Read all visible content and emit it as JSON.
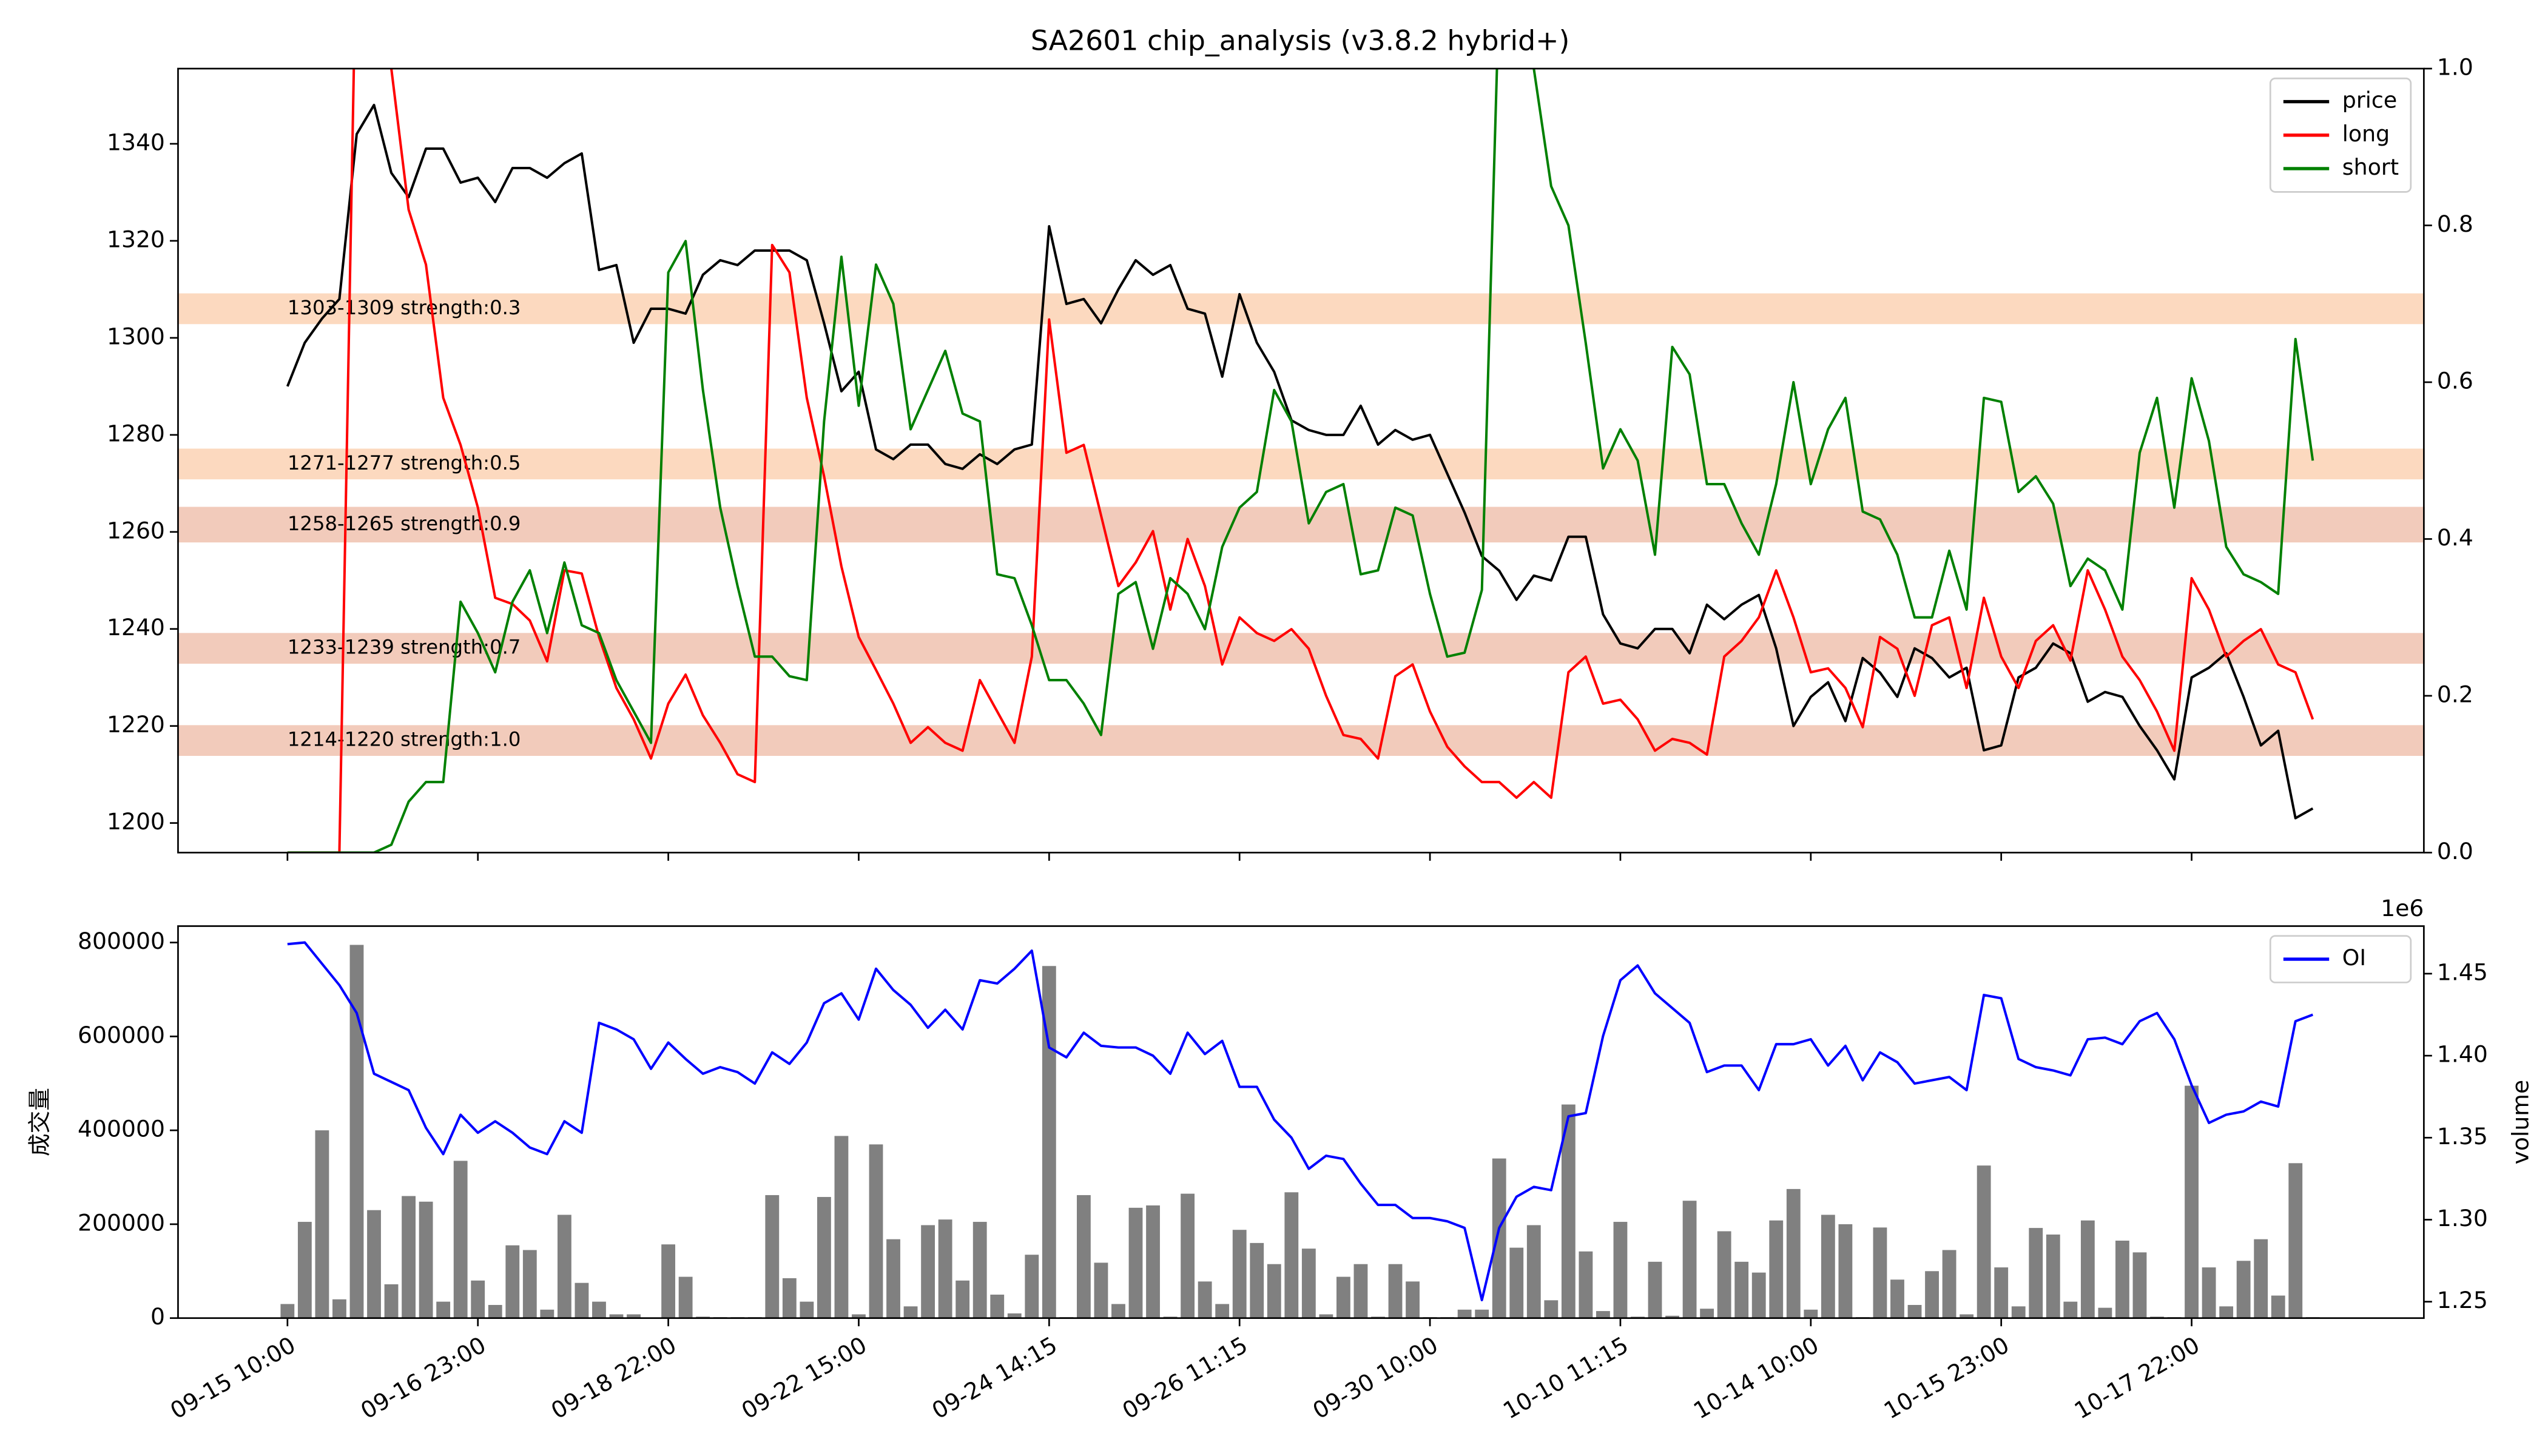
{
  "chart_data": [
    {
      "type": "line",
      "title": "SA2601 chip_analysis (v3.8.2 hybrid+)",
      "ylim": [
        1193.9,
        1355.5
      ],
      "yticks": [
        1200,
        1220,
        1240,
        1260,
        1280,
        1300,
        1320,
        1340
      ],
      "y2lim": [
        0,
        1
      ],
      "y2ticks": [
        {
          "value": 0,
          "label": "0.0"
        },
        0.2,
        0.4,
        0.6,
        0.8,
        {
          "value": 1,
          "label": "1.0"
        }
      ],
      "legend": "upper right",
      "grid": false,
      "bands": [
        {
          "low": 1303,
          "high": 1309,
          "label": "1303-1309 strength:0.3",
          "color": "#fcd9bf"
        },
        {
          "low": 1271,
          "high": 1277,
          "label": "1271-1277 strength:0.5",
          "color": "#fcd9bf"
        },
        {
          "low": 1258,
          "high": 1265,
          "label": "1258-1265 strength:0.9",
          "color": "#f2cbbb"
        },
        {
          "low": 1233,
          "high": 1239,
          "label": "1233-1239 strength:0.7",
          "color": "#f2cbbb"
        },
        {
          "low": 1214,
          "high": 1220,
          "label": "1214-1220 strength:1.0",
          "color": "#f2cbbb"
        }
      ],
      "band_label_color": "#b65e16",
      "series": [
        {
          "name": "price",
          "color": "#000000",
          "axis": "y",
          "values": [
            1290,
            1299,
            1304,
            1308,
            1342,
            1348,
            1334,
            1329,
            1339,
            1339,
            1332,
            1333,
            1328,
            1335,
            1335,
            1333,
            1336,
            1338,
            1314,
            1315,
            1299,
            1306,
            1306,
            1305,
            1313,
            1316,
            1315,
            1318,
            1318,
            1318,
            1316,
            1303,
            1289,
            1293,
            1277,
            1275,
            1278,
            1278,
            1274,
            1273,
            1276,
            1274,
            1277,
            1278,
            1323,
            1307,
            1308,
            1303,
            1310,
            1316,
            1313,
            1315,
            1306,
            1305,
            1292,
            1309,
            1299,
            1293,
            1283,
            1281,
            1280,
            1280,
            1286,
            1278,
            1281,
            1279,
            1280,
            1272,
            1264,
            1255,
            1252,
            1246,
            1251,
            1250,
            1259,
            1259,
            1243,
            1237,
            1236,
            1240,
            1240,
            1235,
            1245,
            1242,
            1245,
            1247,
            1236,
            1220,
            1226,
            1229,
            1221,
            1234,
            1231,
            1226,
            1236,
            1234,
            1230,
            1232,
            1215,
            1216,
            1230,
            1232,
            1237,
            1235,
            1225,
            1227,
            1226,
            1220,
            1215,
            1209,
            1230,
            1232,
            1235,
            1226,
            1216,
            1219,
            1201,
            1203
          ]
        },
        {
          "name": "long",
          "color": "#ff0000",
          "axis": "y2",
          "values": [
            0,
            0,
            0,
            0,
            1.2,
            1.15,
            1.0,
            0.82,
            0.75,
            0.58,
            0.52,
            0.44,
            0.325,
            0.317,
            0.296,
            0.244,
            0.36,
            0.356,
            0.275,
            0.21,
            0.17,
            0.12,
            0.19,
            0.227,
            0.175,
            0.14,
            0.1,
            0.09,
            0.775,
            0.74,
            0.58,
            0.48,
            0.365,
            0.275,
            0.233,
            0.19,
            0.14,
            0.16,
            0.14,
            0.13,
            0.22,
            0.18,
            0.14,
            0.25,
            0.68,
            0.51,
            0.52,
            0.43,
            0.34,
            0.37,
            0.41,
            0.31,
            0.4,
            0.34,
            0.24,
            0.3,
            0.28,
            0.27,
            0.285,
            0.26,
            0.2,
            0.15,
            0.145,
            0.12,
            0.225,
            0.24,
            0.18,
            0.135,
            0.11,
            0.09,
            0.09,
            0.07,
            0.09,
            0.07,
            0.23,
            0.25,
            0.19,
            0.195,
            0.17,
            0.13,
            0.145,
            0.14,
            0.125,
            0.25,
            0.27,
            0.3,
            0.36,
            0.3,
            0.23,
            0.235,
            0.21,
            0.16,
            0.275,
            0.26,
            0.2,
            0.29,
            0.3,
            0.21,
            0.325,
            0.25,
            0.21,
            0.27,
            0.29,
            0.245,
            0.36,
            0.31,
            0.25,
            0.22,
            0.18,
            0.13,
            0.35,
            0.31,
            0.25,
            0.27,
            0.285,
            0.24,
            0.23,
            0.17
          ]
        },
        {
          "name": "short",
          "color": "#008000",
          "axis": "y2",
          "values": [
            0,
            0,
            0,
            0,
            0,
            0,
            0.01,
            0.065,
            0.09,
            0.09,
            0.32,
            0.28,
            0.23,
            0.32,
            0.36,
            0.28,
            0.37,
            0.29,
            0.28,
            0.22,
            0.18,
            0.14,
            0.74,
            0.78,
            0.59,
            0.44,
            0.34,
            0.25,
            0.25,
            0.225,
            0.22,
            0.55,
            0.76,
            0.57,
            0.75,
            0.7,
            0.54,
            0.59,
            0.64,
            0.56,
            0.55,
            0.355,
            0.35,
            0.29,
            0.22,
            0.22,
            0.19,
            0.15,
            0.33,
            0.345,
            0.26,
            0.35,
            0.33,
            0.285,
            0.39,
            0.44,
            0.46,
            0.59,
            0.55,
            0.42,
            0.46,
            0.47,
            0.355,
            0.36,
            0.44,
            0.43,
            0.33,
            0.25,
            0.255,
            0.335,
            1.1,
            1.1,
            1.0,
            0.85,
            0.8,
            0.65,
            0.49,
            0.54,
            0.5,
            0.38,
            0.645,
            0.61,
            0.47,
            0.47,
            0.42,
            0.38,
            0.47,
            0.6,
            0.47,
            0.54,
            0.58,
            0.435,
            0.425,
            0.38,
            0.3,
            0.3,
            0.385,
            0.31,
            0.58,
            0.575,
            0.46,
            0.48,
            0.445,
            0.34,
            0.375,
            0.36,
            0.31,
            0.51,
            0.58,
            0.44,
            0.605,
            0.525,
            0.39,
            0.355,
            0.345,
            0.33,
            0.655,
            0.5
          ]
        }
      ]
    },
    {
      "type": "bar",
      "ylabel": "成交量",
      "y2label": "volume",
      "y2_offset": "1e6",
      "ylim": [
        0,
        835000
      ],
      "yticks": [
        0,
        200000,
        400000,
        600000,
        800000
      ],
      "y2lim": [
        1240000,
        1479000
      ],
      "y2ticks": [
        {
          "value": 1250000,
          "label": "1.25"
        },
        {
          "value": 1300000,
          "label": "1.30"
        },
        {
          "value": 1350000,
          "label": "1.35"
        },
        {
          "value": 1400000,
          "label": "1.40"
        },
        {
          "value": 1450000,
          "label": "1.45"
        }
      ],
      "legend": "upper right",
      "color": "#808080",
      "y_label_color": "#808080",
      "y2_color": "#0000ff",
      "categories": [
        "09-15 10:00",
        null,
        null,
        null,
        null,
        null,
        null,
        null,
        null,
        null,
        null,
        "09-16 23:00",
        null,
        null,
        null,
        null,
        null,
        null,
        null,
        null,
        null,
        null,
        "09-18 22:00",
        null,
        null,
        null,
        null,
        null,
        null,
        null,
        null,
        null,
        null,
        "09-22 15:00",
        null,
        null,
        null,
        null,
        null,
        null,
        null,
        null,
        null,
        null,
        "09-24 14:15",
        null,
        null,
        null,
        null,
        null,
        null,
        null,
        null,
        null,
        null,
        "09-26 11:15",
        null,
        null,
        null,
        null,
        null,
        null,
        null,
        null,
        null,
        null,
        "09-30 10:00",
        null,
        null,
        null,
        null,
        null,
        null,
        null,
        null,
        null,
        null,
        "10-10 11:15",
        null,
        null,
        null,
        null,
        null,
        null,
        null,
        null,
        null,
        null,
        "10-14 10:00",
        null,
        null,
        null,
        null,
        null,
        null,
        null,
        null,
        null,
        null,
        "10-15 23:00",
        null,
        null,
        null,
        null,
        null,
        null,
        null,
        null,
        null,
        null,
        "10-17 22:00",
        null,
        null,
        null,
        null,
        null,
        null,
        null
      ],
      "values": [
        30000,
        205000,
        400000,
        40000,
        795000,
        230000,
        72000,
        260000,
        248000,
        35000,
        335000,
        80000,
        28000,
        155000,
        145000,
        18000,
        220000,
        75000,
        35000,
        8000,
        8000,
        0,
        157000,
        88000,
        3000,
        2000,
        2000,
        2000,
        262000,
        85000,
        35000,
        258000,
        388000,
        8000,
        370000,
        168000,
        25000,
        198000,
        210000,
        80000,
        205000,
        50000,
        10000,
        135000,
        750000,
        2000,
        262000,
        118000,
        30000,
        235000,
        240000,
        3000,
        265000,
        78000,
        30000,
        188000,
        160000,
        115000,
        268000,
        148000,
        8000,
        88000,
        115000,
        3000,
        115000,
        78000,
        2000,
        2000,
        18000,
        18000,
        340000,
        150000,
        198000,
        38000,
        455000,
        142000,
        15000,
        205000,
        3000,
        120000,
        5000,
        250000,
        20000,
        185000,
        120000,
        97000,
        208000,
        275000,
        18000,
        220000,
        200000,
        2000,
        193000,
        82000,
        28000,
        100000,
        145000,
        8000,
        325000,
        108000,
        25000,
        192000,
        178000,
        35000,
        208000,
        22000,
        165000,
        140000,
        3000,
        2000,
        495000,
        108000,
        25000,
        122000,
        168000,
        48000,
        330000,
        2000
      ],
      "series": [
        {
          "name": "OI",
          "color": "#0000ff",
          "axis": "y2",
          "values": [
            1468000,
            1469000,
            1456000,
            1443000,
            1426000,
            1389000,
            1384000,
            1379000,
            1356000,
            1340000,
            1364000,
            1353000,
            1360000,
            1353000,
            1344000,
            1340000,
            1360000,
            1353000,
            1420000,
            1416000,
            1410000,
            1392000,
            1408000,
            1398000,
            1389000,
            1393000,
            1390000,
            1383000,
            1402000,
            1395000,
            1408000,
            1432000,
            1438000,
            1422000,
            1453000,
            1440000,
            1431000,
            1417000,
            1428000,
            1416000,
            1446000,
            1444000,
            1453000,
            1464000,
            1405000,
            1399000,
            1414000,
            1406000,
            1405000,
            1405000,
            1400000,
            1389000,
            1414000,
            1401000,
            1409000,
            1381000,
            1381000,
            1361000,
            1350000,
            1331000,
            1339000,
            1337000,
            1322000,
            1309000,
            1309000,
            1301000,
            1301000,
            1299000,
            1295000,
            1251000,
            1295000,
            1314000,
            1320000,
            1318000,
            1363000,
            1365000,
            1412000,
            1446000,
            1455000,
            1438000,
            1429000,
            1420000,
            1390000,
            1394000,
            1394000,
            1379000,
            1407000,
            1407000,
            1410000,
            1394000,
            1406000,
            1385000,
            1402000,
            1396000,
            1383000,
            1385000,
            1387000,
            1379000,
            1437000,
            1435000,
            1398000,
            1393000,
            1391000,
            1388000,
            1410000,
            1411000,
            1407000,
            1421000,
            1426000,
            1410000,
            1382000,
            1359000,
            1364000,
            1366000,
            1372000,
            1369000,
            1421000,
            1425000
          ]
        }
      ]
    }
  ]
}
